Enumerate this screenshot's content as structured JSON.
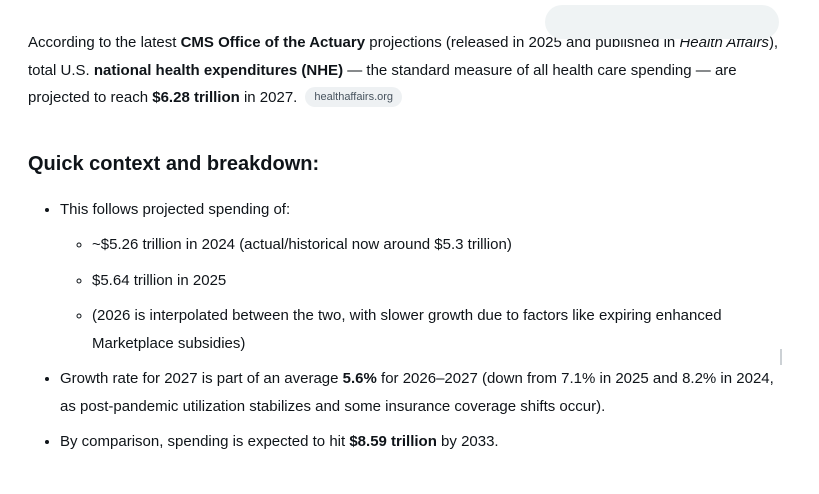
{
  "colors": {
    "background": "#ffffff",
    "text": "#0f1419",
    "user_bubble_bg": "#eff3f4",
    "citation_chip_bg": "#eef1f3",
    "citation_chip_text": "#47535e"
  },
  "answer": {
    "paragraph": {
      "segments": [
        {
          "t": "According to the latest "
        },
        {
          "t": "CMS Office of the Actuary",
          "b": true
        },
        {
          "t": " projections (released in 2025 and published in "
        },
        {
          "t": "Health Affairs",
          "i": true
        },
        {
          "t": "), total U.S. "
        },
        {
          "t": "national health expenditures (NHE)",
          "b": true
        },
        {
          "t": " — the standard measure of all health care spending — are projected to reach "
        },
        {
          "t": "$6.28 trillion",
          "b": true
        },
        {
          "t": " in 2027."
        }
      ],
      "citation": "healthaffairs.org"
    },
    "heading": "Quick context and breakdown:",
    "list": [
      {
        "segments": [
          {
            "t": "This follows projected spending of:"
          }
        ],
        "children": [
          {
            "segments": [
              {
                "t": "~$5.26 trillion in 2024 (actual/historical now around $5.3 trillion)"
              }
            ]
          },
          {
            "segments": [
              {
                "t": "$5.64 trillion in 2025"
              }
            ]
          },
          {
            "segments": [
              {
                "t": "(2026 is interpolated between the two, with slower growth due to factors like expiring enhanced Marketplace subsidies)"
              }
            ]
          }
        ]
      },
      {
        "segments": [
          {
            "t": "Growth rate for 2027 is part of an average "
          },
          {
            "t": "5.6%",
            "b": true
          },
          {
            "t": " for 2026–2027 (down from 7.1% in 2025 and 8.2% in 2024, as post-pandemic utilization stabilizes and some insurance coverage shifts occur)."
          }
        ]
      },
      {
        "segments": [
          {
            "t": "By comparison, spending is expected to hit "
          },
          {
            "t": "$8.59 trillion",
            "b": true
          },
          {
            "t": " by 2033."
          }
        ]
      }
    ]
  }
}
